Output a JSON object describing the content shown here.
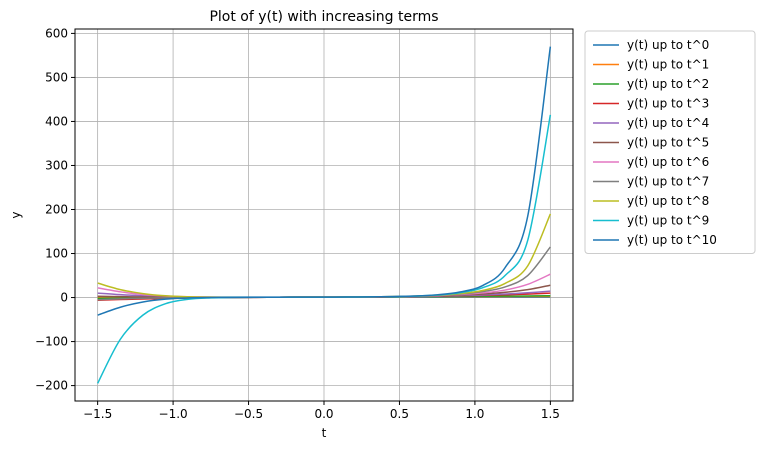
{
  "chart_data": {
    "type": "line",
    "title": "Plot of y(t) with increasing terms",
    "xlabel": "t",
    "ylabel": "y",
    "xlim": [
      -1.65,
      1.65
    ],
    "ylim": [
      -235,
      610
    ],
    "xticks": [
      -1.5,
      -1.0,
      -0.5,
      0.0,
      0.5,
      1.0,
      1.5
    ],
    "xtick_labels": [
      "−1.5",
      "−1.0",
      "−0.5",
      "0.0",
      "0.5",
      "1.0",
      "1.5"
    ],
    "yticks": [
      -200,
      -100,
      0,
      100,
      200,
      300,
      400,
      500,
      600
    ],
    "ytick_labels": [
      "−200",
      "−100",
      "0",
      "100",
      "200",
      "300",
      "400",
      "500",
      "600"
    ],
    "grid": true,
    "legend_position": "outside-right",
    "x": [
      -1.5,
      -1.35,
      -1.2,
      -1.05,
      -0.9,
      -0.75,
      -0.6,
      -0.45,
      -0.3,
      -0.15,
      0.0,
      0.15,
      0.3,
      0.45,
      0.6,
      0.75,
      0.9,
      1.05,
      1.2,
      1.35,
      1.5
    ],
    "series": [
      {
        "name": "y(t) up to t^0",
        "color": "#1f77b4",
        "values": [
          1,
          1,
          1,
          1,
          1,
          1,
          1,
          1,
          1,
          1,
          1,
          1,
          1,
          1,
          1,
          1,
          1,
          1,
          1,
          1,
          1
        ]
      },
      {
        "name": "y(t) up to t^1",
        "color": "#ff7f0e",
        "values": [
          -0.5,
          -0.35,
          -0.2,
          -0.05,
          0.1,
          0.25,
          0.4,
          0.55,
          0.7,
          0.85,
          1,
          1.15,
          1.3,
          1.45,
          1.6,
          1.75,
          1.9,
          2.05,
          2.2,
          2.35,
          2.5
        ]
      },
      {
        "name": "y(t) up to t^2",
        "color": "#2ca02c",
        "values": [
          -2,
          -1.5,
          -1,
          -0.6,
          -0.3,
          -0.05,
          0.2,
          0.45,
          0.65,
          0.85,
          1,
          1.2,
          1.4,
          1.65,
          1.9,
          2.2,
          2.5,
          2.8,
          3.2,
          3.5,
          4
        ]
      },
      {
        "name": "y(t) up to t^3",
        "color": "#d62728",
        "values": [
          -6,
          -4.5,
          -3.2,
          -2.1,
          -1.2,
          -0.5,
          0.1,
          0.5,
          0.8,
          0.95,
          1,
          1.15,
          1.4,
          1.8,
          2.3,
          3,
          3.8,
          4.9,
          6.2,
          7.8,
          10
        ]
      },
      {
        "name": "y(t) up to t^4",
        "color": "#9467bd",
        "values": [
          10,
          6.5,
          4,
          2.3,
          1.2,
          0.6,
          0.4,
          0.5,
          0.7,
          0.9,
          1,
          1.15,
          1.4,
          1.8,
          2.4,
          3.2,
          4.3,
          5.8,
          8,
          10.8,
          14.5
        ]
      },
      {
        "name": "y(t) up to t^5",
        "color": "#8c564b",
        "values": [
          3,
          2,
          1.2,
          0.7,
          0.5,
          0.4,
          0.45,
          0.55,
          0.75,
          0.9,
          1,
          1.15,
          1.4,
          1.9,
          2.6,
          3.8,
          5.5,
          8,
          12,
          18,
          28
        ]
      },
      {
        "name": "y(t) up to t^6",
        "color": "#e377c2",
        "values": [
          22,
          13,
          7,
          3.5,
          1.7,
          0.9,
          0.6,
          0.6,
          0.75,
          0.9,
          1,
          1.15,
          1.45,
          2,
          2.9,
          4.4,
          6.8,
          10.5,
          17,
          30,
          53
        ]
      },
      {
        "name": "y(t) up to t^7",
        "color": "#7f7f7f",
        "values": [
          -5,
          -3,
          -1.5,
          -0.5,
          0.2,
          0.4,
          0.5,
          0.6,
          0.75,
          0.9,
          1,
          1.15,
          1.45,
          2,
          3,
          4.8,
          8,
          13.5,
          24,
          50,
          115
        ]
      },
      {
        "name": "y(t) up to t^8",
        "color": "#bcbd22",
        "values": [
          33,
          18,
          9,
          4,
          1.8,
          0.9,
          0.6,
          0.6,
          0.75,
          0.9,
          1,
          1.15,
          1.45,
          2,
          3.1,
          5.2,
          9,
          16,
          32,
          72,
          190
        ]
      },
      {
        "name": "y(t) up to t^9",
        "color": "#17becf",
        "values": [
          -195,
          -95,
          -40,
          -14,
          -4,
          -0.8,
          0.3,
          0.6,
          0.75,
          0.9,
          1,
          1.15,
          1.45,
          2.1,
          3.3,
          5.8,
          11,
          22,
          50,
          130,
          415
        ]
      },
      {
        "name": "y(t) up to t^10",
        "color": "#1f77b4",
        "values": [
          -40,
          -22,
          -10,
          -3.5,
          -0.8,
          0.2,
          0.5,
          0.6,
          0.75,
          0.9,
          1,
          1.15,
          1.45,
          2.1,
          3.4,
          6.2,
          12.5,
          27,
          68,
          185,
          570
        ]
      }
    ]
  }
}
